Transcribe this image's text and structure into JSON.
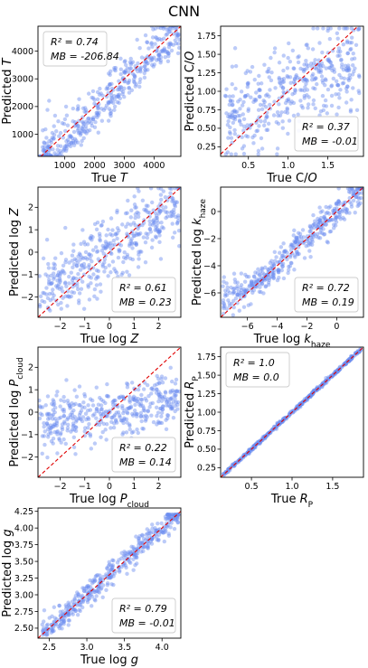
{
  "figure_title": "CNN",
  "colors": {
    "points": "#6b8cef",
    "identity_line": "#e00000",
    "frame": "#000000",
    "legend_border": "#cccccc"
  },
  "chart_data": [
    {
      "type": "scatter",
      "id": "T",
      "xlabel": "True T",
      "ylabel": "Predicted T",
      "xlim": [
        100,
        4900
      ],
      "ylim": [
        200,
        4900
      ],
      "xticks": [
        1000,
        2000,
        3000,
        4000
      ],
      "xtick_labels": [
        "1000",
        "2000",
        "3000",
        "4000"
      ],
      "yticks": [
        1000,
        2000,
        3000,
        4000
      ],
      "ytick_labels": [
        "1000",
        "2000",
        "3000",
        "4000"
      ],
      "stats": {
        "r2": "R² = 0.74",
        "mb": "MB = -206.84",
        "position": "top-left"
      },
      "scatter_model": {
        "n": 420,
        "seed": 11,
        "mode": "linear",
        "x_range": [
          150,
          4850
        ],
        "noise": 620,
        "bias": -206,
        "clip": [
          200,
          4900
        ],
        "skew": 0.6
      }
    },
    {
      "type": "scatter",
      "id": "CO",
      "xlabel": "True C/O",
      "ylabel": "Predicted C/O",
      "xlim": [
        0.15,
        1.95
      ],
      "ylim": [
        0.12,
        1.88
      ],
      "xticks": [
        0.5,
        1.0,
        1.5
      ],
      "xtick_labels": [
        "0.5",
        "1.0",
        "1.5"
      ],
      "yticks": [
        0.25,
        0.5,
        0.75,
        1.0,
        1.25,
        1.5,
        1.75
      ],
      "ytick_labels": [
        "0.25",
        "0.50",
        "0.75",
        "1.00",
        "1.25",
        "1.50",
        "1.75"
      ],
      "stats": {
        "r2": "R² = 0.37",
        "mb": "MB = -0.01",
        "position": "bottom-right"
      },
      "scatter_model": {
        "n": 420,
        "seed": 23,
        "mode": "shrink",
        "x_range": [
          0.2,
          1.9
        ],
        "center": 1.05,
        "slope": 0.45,
        "noise": 0.3,
        "clip": [
          0.15,
          1.85
        ]
      }
    },
    {
      "type": "scatter",
      "id": "Z",
      "xlabel": "True log Z",
      "ylabel": "Predicted log Z",
      "xlim": [
        -2.9,
        2.9
      ],
      "ylim": [
        -2.9,
        2.9
      ],
      "xticks": [
        -2,
        -1,
        0,
        1,
        2
      ],
      "xtick_labels": [
        "−2",
        "−1",
        "0",
        "1",
        "2"
      ],
      "yticks": [
        -2,
        -1,
        0,
        1,
        2
      ],
      "ytick_labels": [
        "−2",
        "−1",
        "0",
        "1",
        "2"
      ],
      "stats": {
        "r2": "R² = 0.61",
        "mb": "MB = 0.23",
        "position": "bottom-right"
      },
      "scatter_model": {
        "n": 420,
        "seed": 37,
        "mode": "shrink",
        "x_range": [
          -2.85,
          2.85
        ],
        "center": 0.2,
        "slope": 0.7,
        "noise": 0.75,
        "clip": [
          -2.85,
          2.85
        ]
      }
    },
    {
      "type": "scatter",
      "id": "khaze",
      "xlabel": "True log k_haze",
      "ylabel": "Predicted log k_haze",
      "xlim": [
        -7.8,
        1.8
      ],
      "ylim": [
        -7.8,
        1.8
      ],
      "xticks": [
        -6,
        -4,
        -2,
        0
      ],
      "xtick_labels": [
        "−6",
        "−4",
        "−2",
        "0"
      ],
      "yticks": [
        -6,
        -4,
        -2,
        0
      ],
      "ytick_labels": [
        "−6",
        "−4",
        "−2",
        "0"
      ],
      "stats": {
        "r2": "R² = 0.72",
        "mb": "MB = 0.19",
        "position": "bottom-right"
      },
      "scatter_model": {
        "n": 420,
        "seed": 53,
        "mode": "floor",
        "x_range": [
          -7.7,
          1.7
        ],
        "floor": -5.6,
        "noise": 0.75,
        "clip": [
          -7.7,
          1.7
        ]
      }
    },
    {
      "type": "scatter",
      "id": "Pcloud",
      "xlabel": "True log P_cloud",
      "ylabel": "Predicted log P_cloud",
      "xlim": [
        -2.9,
        2.9
      ],
      "ylim": [
        -2.9,
        2.9
      ],
      "xticks": [
        -2,
        -1,
        0,
        1,
        2
      ],
      "xtick_labels": [
        "−2",
        "−1",
        "0",
        "1",
        "2"
      ],
      "yticks": [
        -2,
        -1,
        0,
        1,
        2
      ],
      "ytick_labels": [
        "−2",
        "−1",
        "0",
        "1",
        "2"
      ],
      "stats": {
        "r2": "R² = 0.22",
        "mb": "MB = 0.14",
        "position": "bottom-right"
      },
      "scatter_model": {
        "n": 420,
        "seed": 71,
        "mode": "shrink",
        "x_range": [
          -2.85,
          2.85
        ],
        "center": 0.05,
        "slope": 0.2,
        "noise": 0.6,
        "clip": [
          -2.7,
          2.7
        ]
      }
    },
    {
      "type": "scatter",
      "id": "Rp",
      "xlabel": "True R_P",
      "ylabel": "Predicted R_P",
      "xlim": [
        0.12,
        1.88
      ],
      "ylim": [
        0.12,
        1.88
      ],
      "xticks": [
        0.5,
        1.0,
        1.5
      ],
      "xtick_labels": [
        "0.5",
        "1.0",
        "1.5"
      ],
      "yticks": [
        0.25,
        0.5,
        0.75,
        1.0,
        1.25,
        1.5,
        1.75
      ],
      "ytick_labels": [
        "0.25",
        "0.50",
        "0.75",
        "1.00",
        "1.25",
        "1.50",
        "1.75"
      ],
      "stats": {
        "r2": "R² = 1.0",
        "mb": "MB = 0.0",
        "position": "top-left"
      },
      "scatter_model": {
        "n": 420,
        "seed": 89,
        "mode": "linear",
        "x_range": [
          0.15,
          1.85
        ],
        "noise": 0.012,
        "bias": 0,
        "clip": [
          0.12,
          1.88
        ],
        "skew": 0
      }
    },
    {
      "type": "scatter",
      "id": "g",
      "xlabel": "True log g",
      "ylabel": "Predicted log g",
      "xlim": [
        2.35,
        4.25
      ],
      "ylim": [
        2.35,
        4.3
      ],
      "xticks": [
        2.5,
        3.0,
        3.5,
        4.0
      ],
      "xtick_labels": [
        "2.5",
        "3.0",
        "3.5",
        "4.0"
      ],
      "yticks": [
        2.5,
        2.75,
        3.0,
        3.25,
        3.5,
        3.75,
        4.0,
        4.25
      ],
      "ytick_labels": [
        "2.50",
        "2.75",
        "3.00",
        "3.25",
        "3.50",
        "3.75",
        "4.00",
        "4.25"
      ],
      "stats": {
        "r2": "R² = 0.79",
        "mb": "MB = -0.01",
        "position": "bottom-right"
      },
      "scatter_model": {
        "n": 420,
        "seed": 97,
        "mode": "linear",
        "x_range": [
          2.4,
          4.22
        ],
        "noise": 0.17,
        "bias": -0.01,
        "clip": [
          2.4,
          4.2
        ],
        "skew": 0.2
      }
    }
  ]
}
